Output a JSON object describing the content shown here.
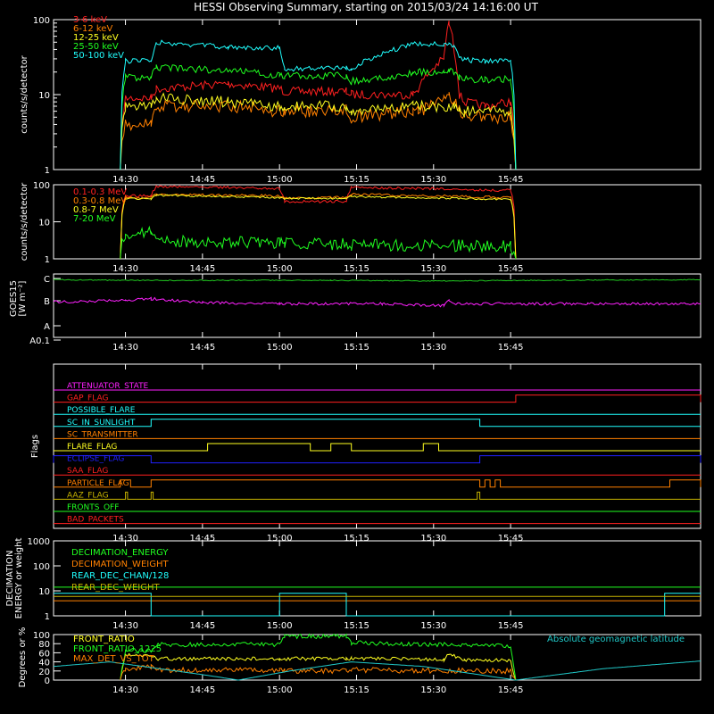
{
  "title": "HESSI Observing Summary, starting on 2015/03/24 14:16:00 UT",
  "time_ticks": [
    "14:30",
    "14:45",
    "15:00",
    "15:15",
    "15:30",
    "15:45"
  ],
  "time_range_minutes": [
    -14,
    112
  ],
  "colors": {
    "red": "#ff2020",
    "orange": "#ff8000",
    "yellow": "#ffff20",
    "green": "#20ff20",
    "cyan": "#20ffff",
    "magenta": "#ff20ff",
    "blue": "#2020ff",
    "darkyellow": "#c8b400",
    "axes": "#ffffff",
    "title": "#ffffff"
  },
  "chart_data": [
    {
      "type": "line",
      "ylabel": "counts/s/detector",
      "yscale": "log",
      "ylim": [
        1,
        100
      ],
      "yticks": [
        "1",
        "10",
        "100"
      ],
      "x": [
        -1,
        0,
        5,
        6,
        20,
        30,
        31,
        43,
        44,
        56,
        57,
        62,
        63,
        64,
        65,
        66,
        70,
        75,
        76
      ],
      "series": [
        {
          "name": "3-6 keV",
          "color": "#ff2020",
          "values": [
            1,
            9,
            9,
            12,
            14,
            12,
            11,
            11,
            10,
            10,
            12,
            30,
            90,
            40,
            10,
            8,
            7,
            8,
            1
          ]
        },
        {
          "name": "6-12 keV",
          "color": "#ff8000",
          "values": [
            1,
            4,
            4,
            7,
            7,
            6,
            6,
            6,
            5,
            6,
            6,
            8,
            9,
            8,
            6,
            5,
            5,
            5,
            1
          ]
        },
        {
          "name": "12-25 keV",
          "color": "#ffff20",
          "values": [
            1,
            7,
            7,
            9,
            8,
            7,
            7,
            7,
            6,
            7,
            7,
            7,
            7,
            7,
            6,
            6,
            6,
            6,
            1
          ]
        },
        {
          "name": "25-50 keV",
          "color": "#20ff20",
          "values": [
            1,
            17,
            17,
            23,
            21,
            18,
            18,
            18,
            15,
            19,
            20,
            20,
            21,
            20,
            17,
            16,
            16,
            16,
            1
          ]
        },
        {
          "name": "50-100 keV",
          "color": "#20ffff",
          "values": [
            1,
            28,
            28,
            50,
            43,
            42,
            22,
            23,
            22,
            48,
            48,
            47,
            46,
            46,
            30,
            29,
            28,
            28,
            1
          ]
        }
      ]
    },
    {
      "type": "line",
      "ylabel": "counts/s/detector",
      "yscale": "log",
      "ylim": [
        1,
        100
      ],
      "yticks": [
        "1",
        "10",
        "100"
      ],
      "x": [
        -1,
        0,
        5,
        6,
        30,
        31,
        43,
        44,
        75,
        76
      ],
      "series": [
        {
          "name": "0.1-0.3 MeV",
          "color": "#ff2020",
          "values": [
            1,
            50,
            50,
            90,
            80,
            35,
            35,
            85,
            70,
            1
          ]
        },
        {
          "name": "0.3-0.8 MeV",
          "color": "#ff8000",
          "values": [
            1,
            45,
            45,
            55,
            50,
            45,
            45,
            55,
            45,
            1
          ]
        },
        {
          "name": "0.8-7 MeV",
          "color": "#ffff20",
          "values": [
            1,
            42,
            42,
            52,
            45,
            43,
            43,
            48,
            40,
            1
          ]
        },
        {
          "name": "7-20 MeV",
          "color": "#20ff20",
          "values": [
            1,
            5,
            5,
            3,
            2.7,
            2.5,
            2.5,
            2.4,
            2.2,
            1
          ]
        }
      ]
    },
    {
      "type": "line",
      "ylabel": "GOES15",
      "ylabel_unit": "[W m⁻²]",
      "yticks": [
        "A0.1",
        "A",
        "B",
        "C"
      ],
      "series": [
        {
          "name": "",
          "color": "#20c820",
          "x": [
            -14,
            0,
            20,
            40,
            60,
            80,
            112
          ],
          "values": [
            0.09,
            0.1,
            0.1,
            0.1,
            0.11,
            0.1,
            0.09
          ]
        },
        {
          "name": "",
          "color": "#ff20ff",
          "x": [
            -14,
            0,
            5,
            15,
            30,
            50,
            62,
            63,
            64,
            70,
            90,
            112
          ],
          "values": [
            0.44,
            0.42,
            0.39,
            0.45,
            0.47,
            0.47,
            0.5,
            0.42,
            0.47,
            0.47,
            0.47,
            0.47
          ]
        }
      ]
    },
    {
      "type": "table",
      "ylabel": "Flags",
      "flags": [
        {
          "name": "ATTENUATOR_STATE",
          "color": "#ff20ff",
          "segments": []
        },
        {
          "name": "GAP_FLAG",
          "color": "#ff2020",
          "segments": [
            [
              76,
              112
            ]
          ]
        },
        {
          "name": "POSSIBLE_FLARE",
          "color": "#20ffff",
          "segments": []
        },
        {
          "name": "SC_IN_SUNLIGHT",
          "color": "#20ffff",
          "segments": [
            [
              5,
              69
            ]
          ]
        },
        {
          "name": "SC_TRANSMITTER",
          "color": "#ff8000",
          "segments": []
        },
        {
          "name": "FLARE_FLAG",
          "color": "#ffff20",
          "segments": [
            [
              16,
              36
            ],
            [
              40,
              44
            ],
            [
              58,
              61
            ]
          ]
        },
        {
          "name": "ECLIPSE_FLAG",
          "color": "#2020ff",
          "segments": [
            [
              -14,
              5
            ],
            [
              69,
              112
            ]
          ]
        },
        {
          "name": "SAA_FLAG",
          "color": "#ff2020",
          "segments": []
        },
        {
          "name": "PARTICLE_FLAG",
          "color": "#ff8000",
          "segments": [
            [
              -1,
              1
            ],
            [
              5,
              69
            ],
            [
              70,
              71
            ],
            [
              72,
              73
            ],
            [
              106,
              112
            ]
          ]
        },
        {
          "name": "AAZ_FLAG",
          "color": "#c8b400",
          "segments": [
            [
              0,
              0.4
            ],
            [
              5,
              5.4
            ],
            [
              68.5,
              69
            ]
          ]
        },
        {
          "name": "FRONTS_OFF",
          "color": "#20ff20",
          "segments": []
        },
        {
          "name": "BAD_PACKETS",
          "color": "#ff2020",
          "segments": []
        }
      ]
    },
    {
      "type": "line",
      "ylabel": "DECIMATION",
      "ylabel2": "ENERGY or weight",
      "yscale": "log",
      "ylim": [
        1,
        1000
      ],
      "yticks": [
        "1",
        "10",
        "100",
        "1000"
      ],
      "series": [
        {
          "name": "DECIMATION_ENERGY",
          "color": "#20ff20",
          "x": [
            -14,
            112
          ],
          "values": [
            14,
            14
          ]
        },
        {
          "name": "DECIMATION_WEIGHT",
          "color": "#ff8000",
          "x": [
            -14,
            112
          ],
          "values": [
            4,
            4
          ]
        },
        {
          "name": "REAR_DEC_CHAN/128",
          "color": "#20ffff",
          "x": [
            -14,
            5,
            5,
            30,
            30,
            43,
            43,
            105,
            105,
            112
          ],
          "values": [
            8,
            8,
            1,
            1,
            8,
            8,
            1,
            1,
            8,
            8
          ]
        },
        {
          "name": "REAR_DEC_WEIGHT",
          "color": "#c8b400",
          "x": [
            -14,
            112
          ],
          "values": [
            6,
            6
          ]
        }
      ]
    },
    {
      "type": "line",
      "ylabel": "Degrees or %",
      "ylim": [
        0,
        100
      ],
      "yticks": [
        "0",
        "20",
        "40",
        "60",
        "80",
        "100"
      ],
      "annotation": "Absolute geomagnetic latitude",
      "series": [
        {
          "name": "FRONT_RATIO",
          "color": "#ffff20",
          "x": [
            -1,
            0,
            5,
            6,
            30,
            31,
            43,
            44,
            62,
            63,
            66,
            75,
            76
          ],
          "values": [
            0,
            55,
            55,
            47,
            47,
            47,
            47,
            48,
            45,
            57,
            45,
            43,
            0
          ]
        },
        {
          "name": "FRONT_RATIO_1225",
          "color": "#20ff20",
          "x": [
            -1,
            0,
            5,
            6,
            30,
            31,
            43,
            44,
            75,
            76
          ],
          "values": [
            0,
            65,
            65,
            78,
            78,
            96,
            96,
            82,
            75,
            0
          ]
        },
        {
          "name": "MAX_DET_VS_TOT",
          "color": "#ff8000",
          "x": [
            -1,
            0,
            5,
            6,
            30,
            31,
            43,
            44,
            75,
            76
          ],
          "values": [
            0,
            25,
            30,
            22,
            22,
            20,
            20,
            22,
            20,
            0
          ]
        },
        {
          "name": "",
          "color": "#20c8c8",
          "x": [
            -14,
            -3,
            15,
            22,
            32,
            44,
            58,
            76,
            93,
            112
          ],
          "values": [
            30,
            40,
            12,
            0,
            20,
            40,
            30,
            0,
            25,
            42
          ]
        }
      ]
    }
  ]
}
